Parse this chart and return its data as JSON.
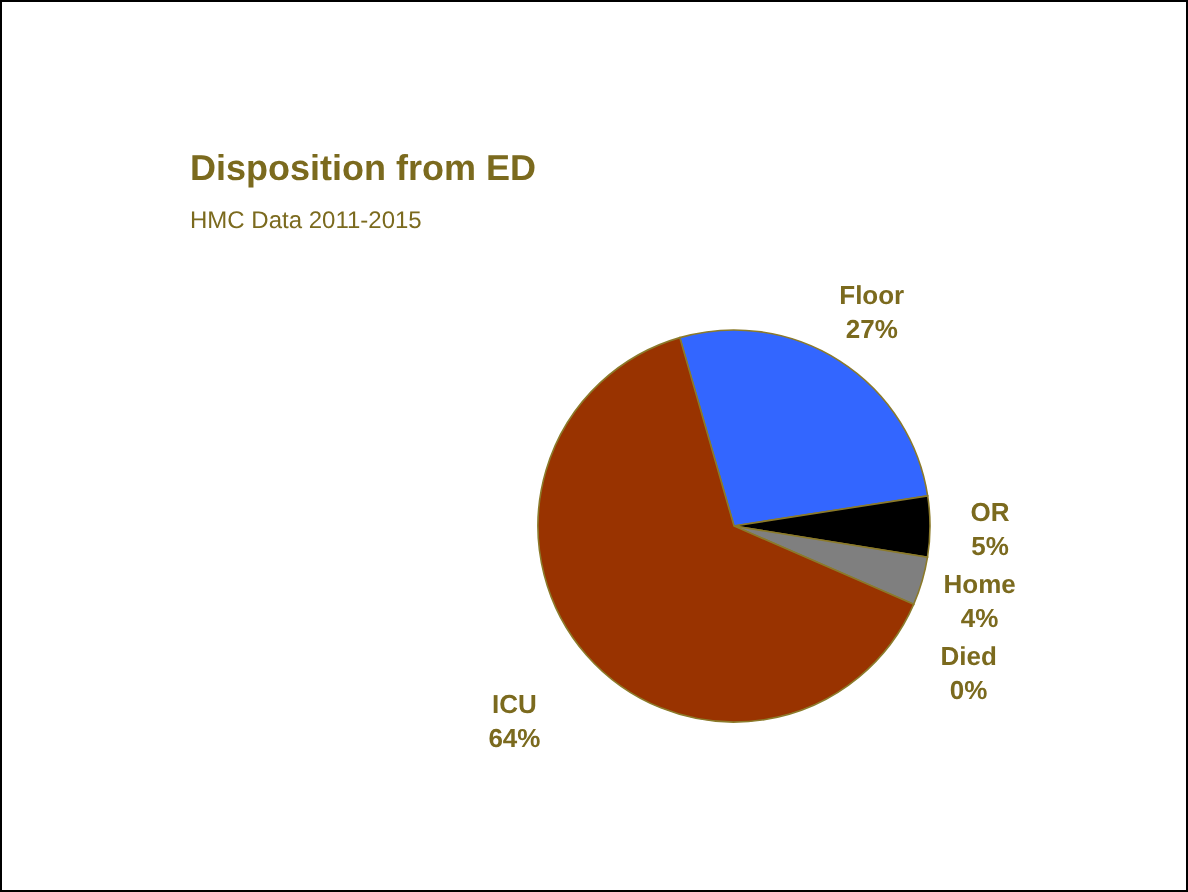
{
  "chart_data": {
    "type": "pie",
    "title": "Disposition from ED",
    "subtitle": "HMC Data 2011-2015",
    "categories": [
      "Floor",
      "OR",
      "Home",
      "Died",
      "ICU"
    ],
    "values": [
      27,
      5,
      4,
      0,
      64
    ],
    "colors": [
      "#3366ff",
      "#000000",
      "#7f7f7f",
      null,
      "#993300"
    ],
    "value_labels": [
      "27%",
      "5%",
      "4%",
      "0%",
      "64%"
    ]
  }
}
